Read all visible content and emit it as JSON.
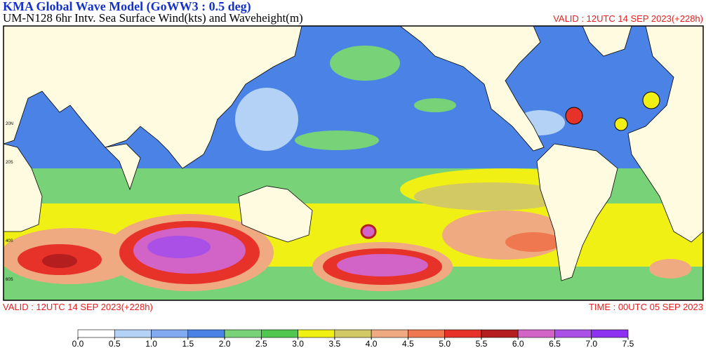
{
  "header": {
    "title": "KMA  Global Wave Model (GoWW3 : 0.5 deg)",
    "subtitle": "UM-N128  6hr Intv. Sea Surface Wind(kts) and Waveheight(m)",
    "valid_top": "VALID : 12UTC 14 SEP 2023(+228h)"
  },
  "footer": {
    "valid": "VALID : 12UTC 14 SEP 2023(+228h)",
    "time": "TIME : 00UTC 05 SEP 2023"
  },
  "map": {
    "lat_labels": [
      "20N",
      "20S",
      "40S",
      "60S"
    ]
  },
  "colorbar": {
    "ticks": [
      {
        "value": 0,
        "label": "0.0"
      },
      {
        "value": 0.5,
        "label": "0.5"
      },
      {
        "value": 1,
        "label": "1.0"
      },
      {
        "value": 1.5,
        "label": "1.5"
      },
      {
        "value": 2,
        "label": "2.0"
      },
      {
        "value": 2.5,
        "label": "2.5"
      },
      {
        "value": 3,
        "label": "3.0"
      },
      {
        "value": 3.5,
        "label": "3.5"
      },
      {
        "value": 4,
        "label": "4.0"
      },
      {
        "value": 4.5,
        "label": "4.5"
      },
      {
        "value": 5,
        "label": "5.0"
      },
      {
        "value": 5.5,
        "label": "5.5"
      },
      {
        "value": 6,
        "label": "6.0"
      },
      {
        "value": 6.5,
        "label": "6.5"
      },
      {
        "value": 7,
        "label": "7.0"
      },
      {
        "value": 7.5,
        "label": "7.5"
      }
    ],
    "colors": [
      "#ffffff",
      "#b4d2f5",
      "#82aaf0",
      "#4b82e6",
      "#78d278",
      "#50c850",
      "#f0f014",
      "#d2c864",
      "#f0aa82",
      "#f07850",
      "#e63228",
      "#b41e1e",
      "#d264c8",
      "#aa50e6",
      "#8c32f0"
    ]
  }
}
